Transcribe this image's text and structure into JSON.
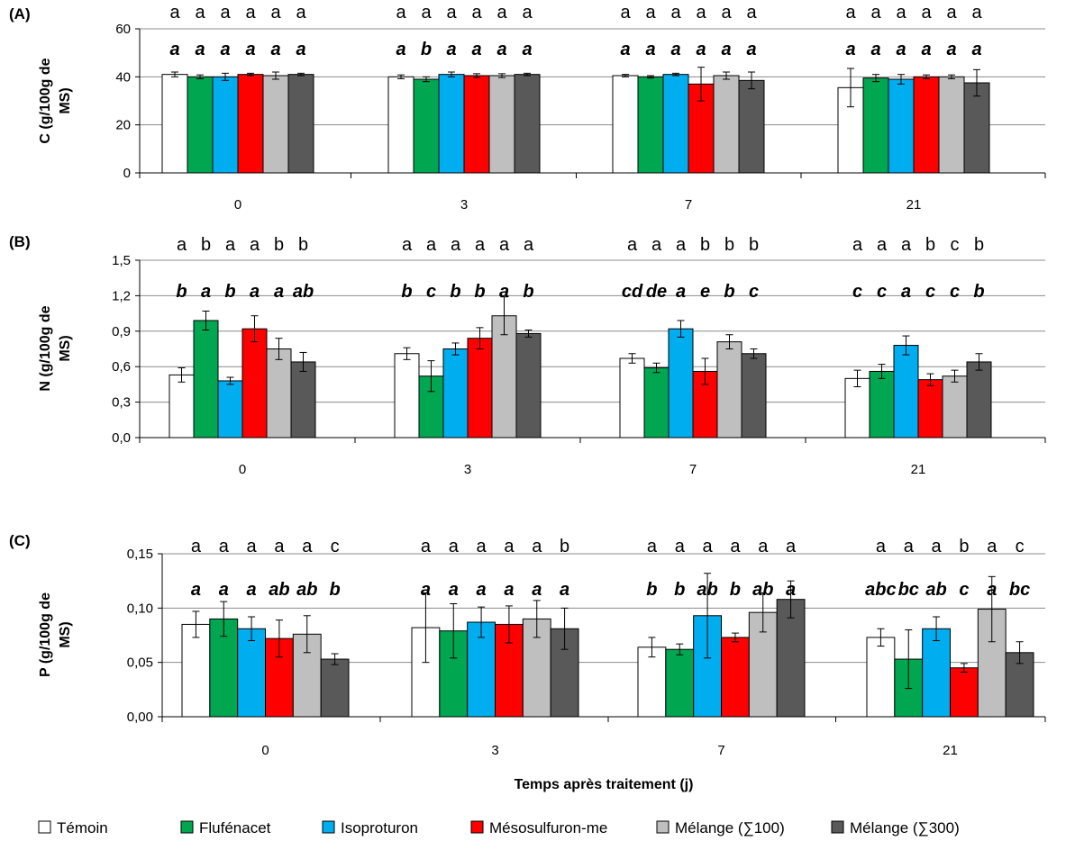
{
  "chart_data": [
    {
      "type": "bar",
      "panel": "(A)",
      "ylabel": "C (g/100g de MS)",
      "ylabel_lines": [
        "C (g/100g de",
        "MS)"
      ],
      "ylim": [
        0,
        60
      ],
      "yticks": [
        "0",
        "20",
        "40",
        "60"
      ],
      "categories": [
        "0",
        "3",
        "7",
        "21"
      ],
      "grid": true,
      "series": [
        {
          "name": "Témoin",
          "color": "#ffffff",
          "values": [
            41,
            40,
            40.5,
            35.5
          ],
          "errors": [
            1,
            0.8,
            0.5,
            8
          ]
        },
        {
          "name": "Flufénacet",
          "color": "#00a650",
          "values": [
            40,
            39,
            40,
            39.5
          ],
          "errors": [
            0.8,
            1,
            0.5,
            1.5
          ]
        },
        {
          "name": "Isoproturon",
          "color": "#00aeef",
          "values": [
            40,
            41,
            41,
            39
          ],
          "errors": [
            1.5,
            1,
            0.5,
            2
          ]
        },
        {
          "name": "Mésosulfuron-me",
          "color": "#ff0000",
          "values": [
            41,
            40.5,
            37,
            40
          ],
          "errors": [
            0.5,
            0.8,
            7,
            0.8
          ]
        },
        {
          "name": "Mélange (∑100)",
          "color": "#bfbfbf",
          "values": [
            40.5,
            40.5,
            40.5,
            40
          ],
          "errors": [
            1.5,
            0.8,
            1.5,
            0.8
          ]
        },
        {
          "name": "Mélange (∑300)",
          "color": "#595959",
          "values": [
            41,
            41,
            38.5,
            37.5
          ],
          "errors": [
            0.5,
            0.5,
            3.5,
            5.5
          ]
        }
      ],
      "letters_upright": [
        [
          "a",
          "a",
          "a",
          "a",
          "a",
          "a"
        ],
        [
          "a",
          "a",
          "a",
          "a",
          "a",
          "a"
        ],
        [
          "a",
          "a",
          "a",
          "a",
          "a",
          "a"
        ],
        [
          "a",
          "a",
          "a",
          "a",
          "a",
          "a"
        ]
      ],
      "letters_italic": [
        [
          "a",
          "a",
          "a",
          "a",
          "a",
          "a"
        ],
        [
          "a",
          "b",
          "a",
          "a",
          "a",
          "a"
        ],
        [
          "a",
          "a",
          "a",
          "a",
          "a",
          "a"
        ],
        [
          "a",
          "a",
          "a",
          "a",
          "a",
          "a"
        ]
      ]
    },
    {
      "type": "bar",
      "panel": "(B)",
      "ylabel": "N (g/100g de MS)",
      "ylabel_lines": [
        "N (g/100g de",
        "MS)"
      ],
      "ylim": [
        0,
        1.5
      ],
      "yticks": [
        "0,0",
        "0,3",
        "0,6",
        "0,9",
        "1,2",
        "1,5"
      ],
      "categories": [
        "0",
        "3",
        "7",
        "21"
      ],
      "grid": true,
      "series": [
        {
          "name": "Témoin",
          "color": "#ffffff",
          "values": [
            0.53,
            0.71,
            0.67,
            0.5
          ],
          "errors": [
            0.06,
            0.05,
            0.04,
            0.07
          ]
        },
        {
          "name": "Flufénacet",
          "color": "#00a650",
          "values": [
            0.99,
            0.52,
            0.59,
            0.56
          ],
          "errors": [
            0.08,
            0.13,
            0.04,
            0.06
          ]
        },
        {
          "name": "Isoproturon",
          "color": "#00aeef",
          "values": [
            0.48,
            0.75,
            0.92,
            0.78
          ],
          "errors": [
            0.03,
            0.05,
            0.07,
            0.08
          ]
        },
        {
          "name": "Mésosulfuron-me",
          "color": "#ff0000",
          "values": [
            0.92,
            0.84,
            0.56,
            0.49
          ],
          "errors": [
            0.11,
            0.09,
            0.11,
            0.05
          ]
        },
        {
          "name": "Mélange (∑100)",
          "color": "#bfbfbf",
          "values": [
            0.75,
            1.03,
            0.81,
            0.52
          ],
          "errors": [
            0.09,
            0.16,
            0.06,
            0.05
          ]
        },
        {
          "name": "Mélange (∑300)",
          "color": "#595959",
          "values": [
            0.64,
            0.88,
            0.71,
            0.64
          ],
          "errors": [
            0.08,
            0.03,
            0.04,
            0.07
          ]
        }
      ],
      "letters_upright": [
        [
          "a",
          "b",
          "a",
          "a",
          "b",
          "b"
        ],
        [
          "a",
          "a",
          "a",
          "a",
          "a",
          "a"
        ],
        [
          "a",
          "a",
          "a",
          "b",
          "b",
          "b"
        ],
        [
          "a",
          "a",
          "a",
          "b",
          "c",
          "b"
        ]
      ],
      "letters_italic": [
        [
          "b",
          "a",
          "b",
          "a",
          "a",
          "ab"
        ],
        [
          "b",
          "c",
          "b",
          "b",
          "a",
          "b"
        ],
        [
          "cd",
          "de",
          "a",
          "e",
          "b",
          "c"
        ],
        [
          "c",
          "c",
          "a",
          "c",
          "c",
          "b"
        ]
      ]
    },
    {
      "type": "bar",
      "panel": "(C)",
      "ylabel": "P (g/100g de MS)",
      "ylabel_lines": [
        "P (g/100g de",
        "MS)"
      ],
      "ylim": [
        0,
        0.15
      ],
      "yticks": [
        "0,00",
        "0,05",
        "0,10",
        "0,15"
      ],
      "categories": [
        "0",
        "3",
        "7",
        "21"
      ],
      "xlabel": "Temps après traitement (j)",
      "grid": true,
      "series": [
        {
          "name": "Témoin",
          "color": "#ffffff",
          "values": [
            0.085,
            0.082,
            0.064,
            0.073
          ],
          "errors": [
            0.012,
            0.032,
            0.009,
            0.008
          ]
        },
        {
          "name": "Flufénacet",
          "color": "#00a650",
          "values": [
            0.09,
            0.079,
            0.062,
            0.053
          ],
          "errors": [
            0.016,
            0.025,
            0.005,
            0.027
          ]
        },
        {
          "name": "Isoproturon",
          "color": "#00aeef",
          "values": [
            0.081,
            0.087,
            0.093,
            0.081
          ],
          "errors": [
            0.011,
            0.014,
            0.039,
            0.011
          ]
        },
        {
          "name": "Mésosulfuron-me",
          "color": "#ff0000",
          "values": [
            0.072,
            0.085,
            0.073,
            0.045
          ],
          "errors": [
            0.017,
            0.017,
            0.004,
            0.004
          ]
        },
        {
          "name": "Mélange (∑100)",
          "color": "#bfbfbf",
          "values": [
            0.076,
            0.09,
            0.096,
            0.099
          ],
          "errors": [
            0.017,
            0.017,
            0.018,
            0.03
          ]
        },
        {
          "name": "Mélange (∑300)",
          "color": "#595959",
          "values": [
            0.053,
            0.081,
            0.108,
            0.059
          ],
          "errors": [
            0.005,
            0.019,
            0.017,
            0.01
          ]
        }
      ],
      "letters_upright": [
        [
          "a",
          "a",
          "a",
          "a",
          "a",
          "c"
        ],
        [
          "a",
          "a",
          "a",
          "a",
          "a",
          "b"
        ],
        [
          "a",
          "a",
          "a",
          "a",
          "a",
          "a"
        ],
        [
          "a",
          "a",
          "a",
          "b",
          "a",
          "c"
        ]
      ],
      "letters_italic": [
        [
          "a",
          "a",
          "a",
          "ab",
          "ab",
          "b"
        ],
        [
          "a",
          "a",
          "a",
          "a",
          "a",
          "a"
        ],
        [
          "b",
          "b",
          "ab",
          "b",
          "ab",
          "a"
        ],
        [
          "abc",
          "bc",
          "ab",
          "c",
          "a",
          "bc"
        ]
      ]
    }
  ],
  "legend": [
    {
      "label": "Témoin",
      "color": "#ffffff"
    },
    {
      "label": "Flufénacet",
      "color": "#00a650"
    },
    {
      "label": "Isoproturon",
      "color": "#00aeef"
    },
    {
      "label": "Mésosulfuron-me",
      "color": "#ff0000"
    },
    {
      "label": "Mélange (∑100)",
      "color": "#bfbfbf"
    },
    {
      "label": "Mélange (∑300)",
      "color": "#595959"
    }
  ]
}
